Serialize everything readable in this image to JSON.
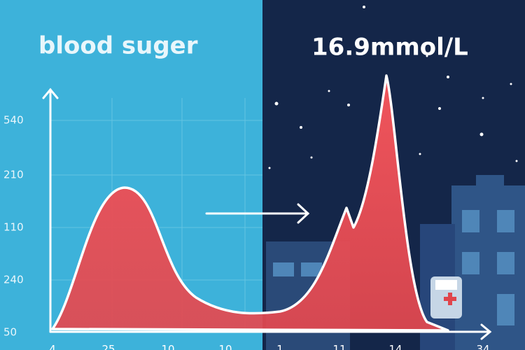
{
  "header": {
    "title": "blood suger",
    "reading": "16.9mmol/L"
  },
  "axis": {
    "y_labels": [
      "540",
      "210",
      "110",
      "240",
      "50"
    ],
    "x_labels": [
      "4",
      "25",
      "10",
      "10",
      "1",
      "11",
      "14",
      "34"
    ]
  }
}
